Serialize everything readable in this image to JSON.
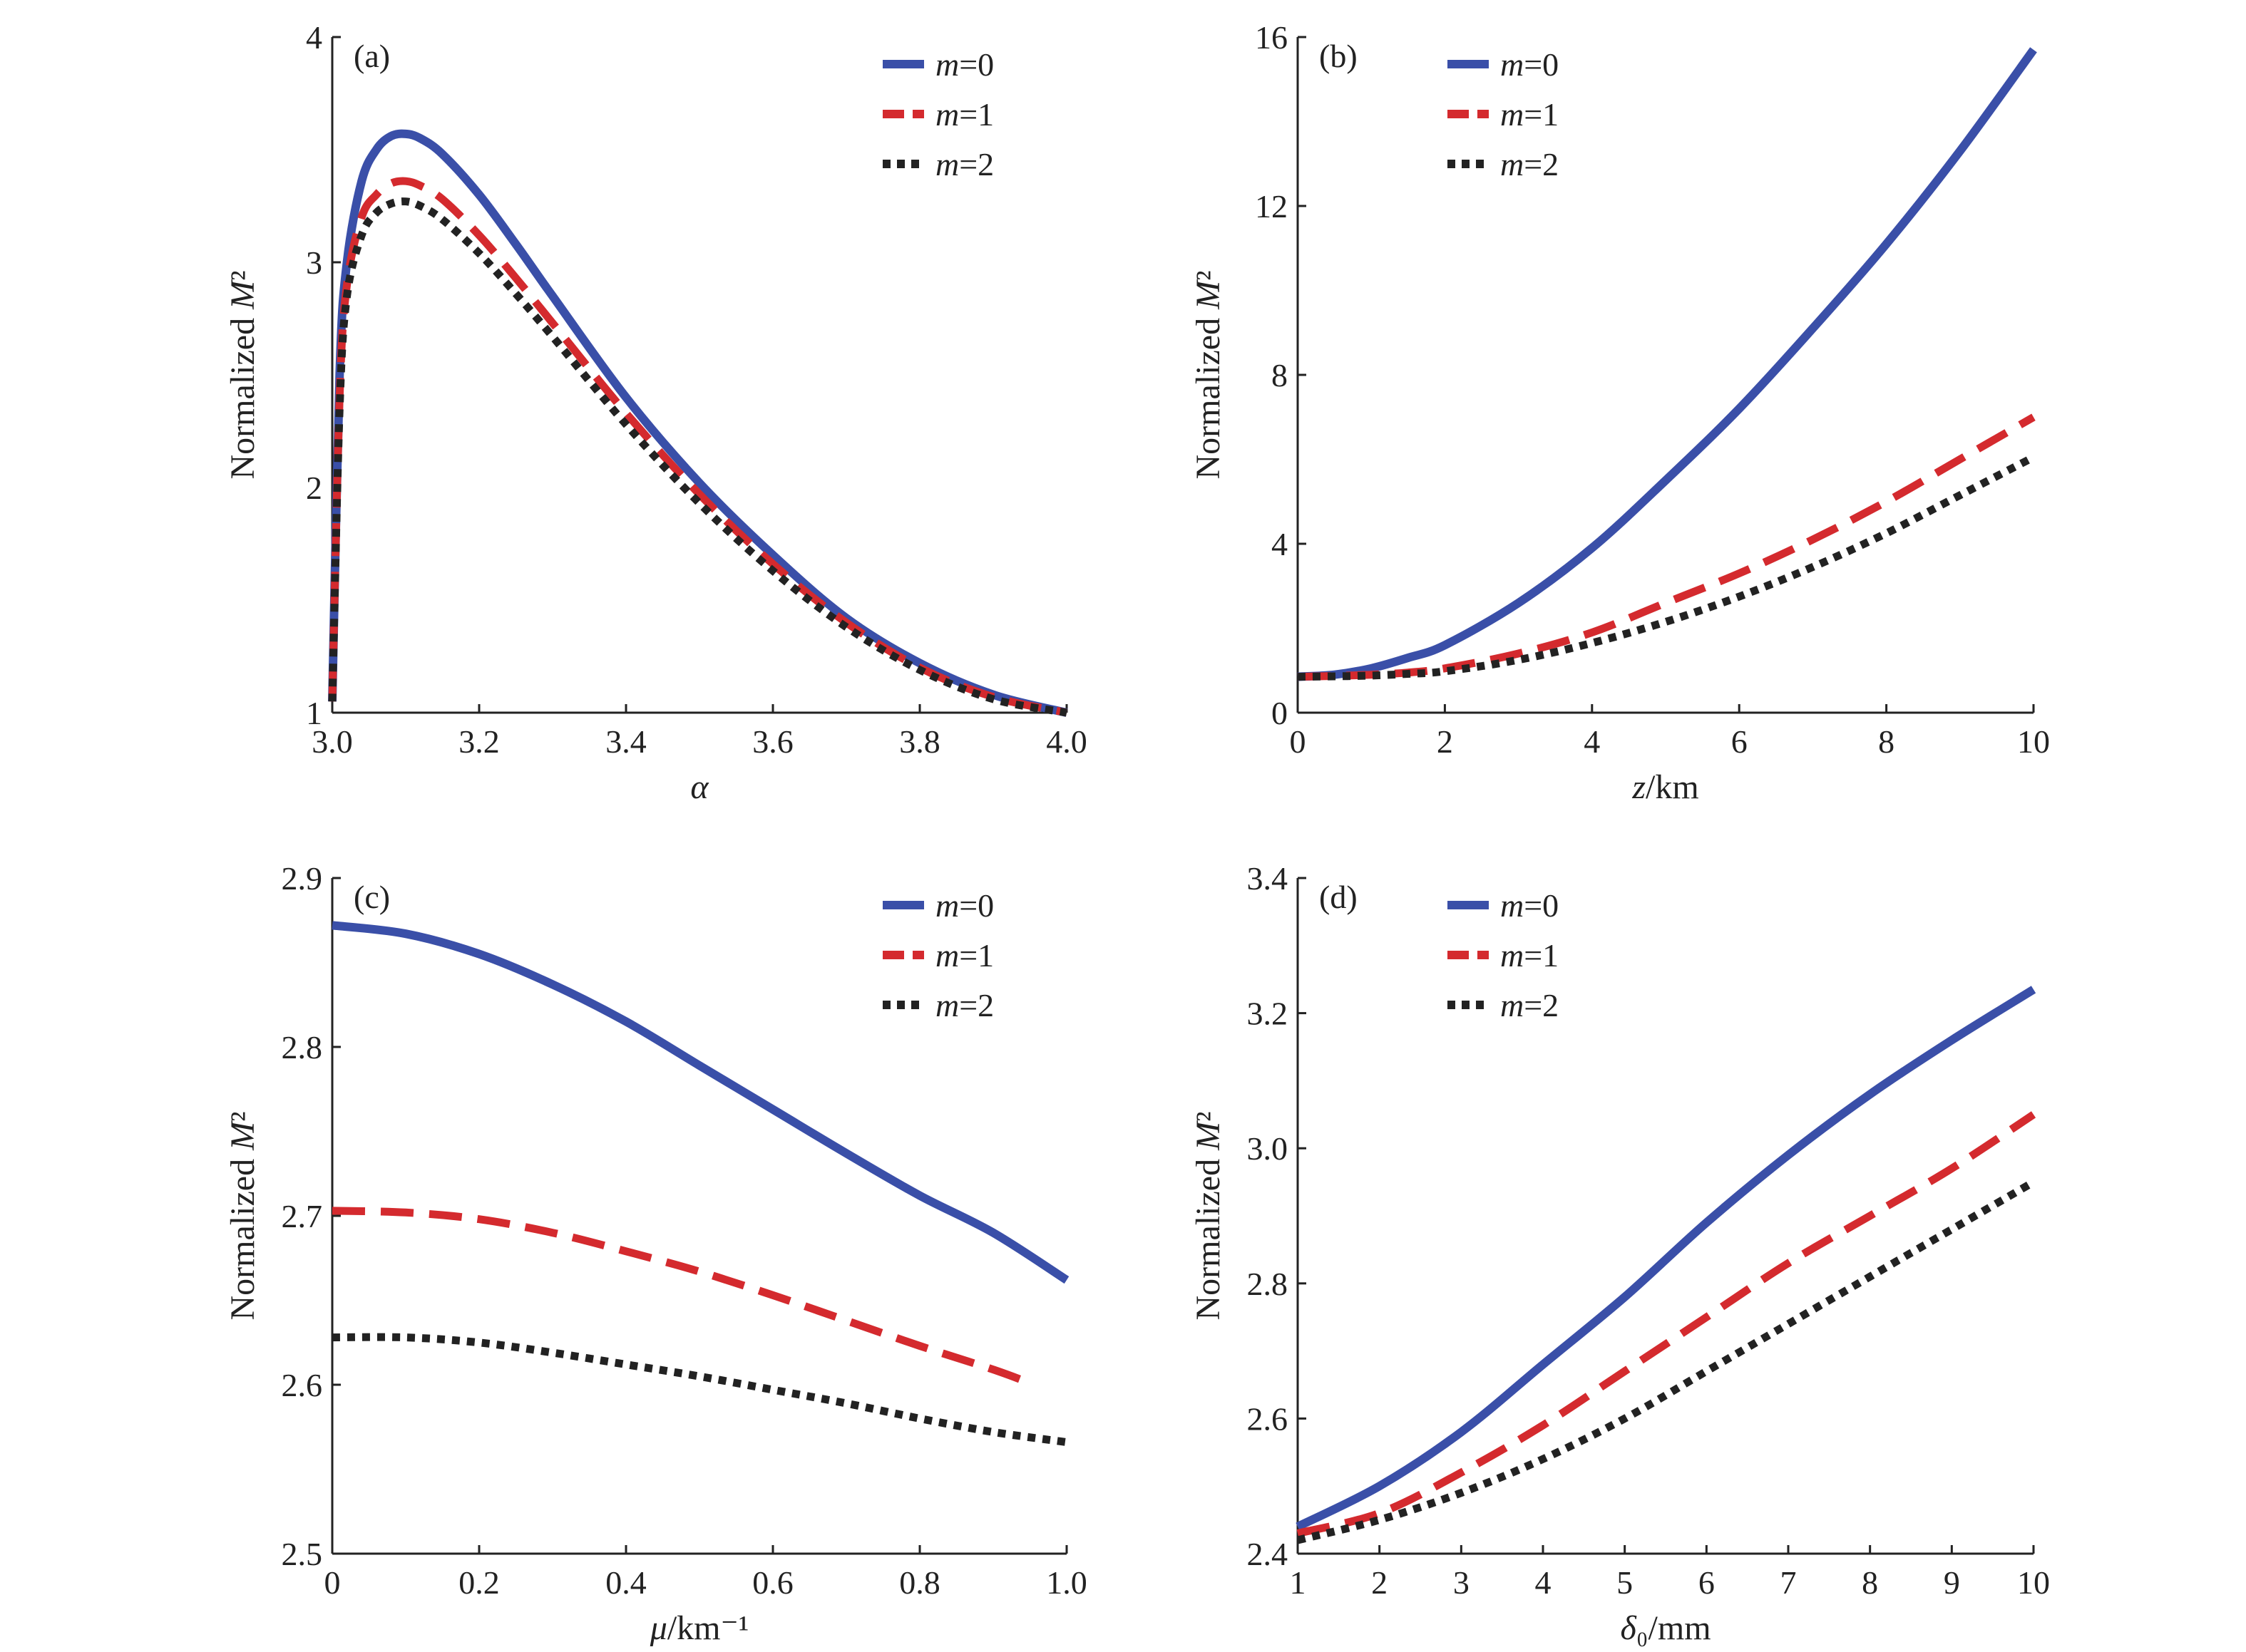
{
  "chart_data": [
    {
      "panel": "(a)",
      "type": "line",
      "xlabel": "α",
      "ylabel": "Normalized M²",
      "xlim": [
        3.0,
        4.0
      ],
      "ylim": [
        1,
        4
      ],
      "xticks": [
        "3.0",
        "3.2",
        "3.4",
        "3.6",
        "3.8",
        "4.0"
      ],
      "yticks": [
        "1",
        "2",
        "3",
        "4"
      ],
      "legend_position": "top-right",
      "grid": false,
      "x": [
        3.0,
        3.01,
        3.02,
        3.04,
        3.06,
        3.08,
        3.1,
        3.12,
        3.15,
        3.2,
        3.25,
        3.3,
        3.4,
        3.5,
        3.6,
        3.7,
        3.8,
        3.9,
        4.0
      ],
      "series": [
        {
          "name": "m=0",
          "style": "solid",
          "color": "#3a4fa8",
          "values": [
            1.05,
            2.5,
            3.0,
            3.36,
            3.5,
            3.56,
            3.57,
            3.55,
            3.48,
            3.3,
            3.08,
            2.85,
            2.4,
            2.02,
            1.7,
            1.42,
            1.22,
            1.08,
            1.0
          ]
        },
        {
          "name": "m=1",
          "style": "dashed",
          "color": "#d42a2e",
          "values": [
            1.05,
            2.4,
            2.9,
            3.2,
            3.3,
            3.35,
            3.36,
            3.34,
            3.28,
            3.12,
            2.93,
            2.73,
            2.33,
            1.97,
            1.66,
            1.4,
            1.2,
            1.07,
            1.0
          ]
        },
        {
          "name": "m=2",
          "style": "dotted",
          "color": "#222222",
          "values": [
            1.05,
            2.35,
            2.85,
            3.12,
            3.22,
            3.26,
            3.27,
            3.25,
            3.19,
            3.04,
            2.86,
            2.67,
            2.28,
            1.93,
            1.63,
            1.38,
            1.19,
            1.06,
            1.0
          ]
        }
      ]
    },
    {
      "panel": "(b)",
      "type": "line",
      "xlabel": "z/km",
      "ylabel": "Normalized M²",
      "xlim": [
        0,
        10
      ],
      "ylim": [
        0,
        16
      ],
      "xticks": [
        "0",
        "2",
        "4",
        "6",
        "8",
        "10"
      ],
      "yticks": [
        "0",
        "4",
        "8",
        "12",
        "16"
      ],
      "legend_position": "top-left",
      "grid": false,
      "x": [
        0,
        0.5,
        1,
        1.5,
        2,
        3,
        4,
        5,
        6,
        7,
        8,
        9,
        10
      ],
      "series": [
        {
          "name": "m=0",
          "style": "solid",
          "color": "#3a4fa8",
          "values": [
            0.85,
            0.9,
            1.05,
            1.3,
            1.6,
            2.6,
            3.9,
            5.5,
            7.2,
            9.1,
            11.1,
            13.3,
            15.7
          ]
        },
        {
          "name": "m=1",
          "style": "dashed",
          "color": "#d42a2e",
          "values": [
            0.85,
            0.87,
            0.9,
            0.95,
            1.05,
            1.4,
            1.9,
            2.6,
            3.3,
            4.1,
            5.0,
            6.0,
            7.0
          ]
        },
        {
          "name": "m=2",
          "style": "dotted",
          "color": "#222222",
          "values": [
            0.85,
            0.86,
            0.88,
            0.92,
            0.98,
            1.25,
            1.65,
            2.15,
            2.75,
            3.45,
            4.25,
            5.15,
            6.05
          ]
        }
      ]
    },
    {
      "panel": "(c)",
      "type": "line",
      "xlabel": "μ/km⁻¹",
      "ylabel": "Normalized M²",
      "xlim": [
        0,
        1.0
      ],
      "ylim": [
        2.5,
        2.9
      ],
      "xticks": [
        "0",
        "0.2",
        "0.4",
        "0.6",
        "0.8",
        "1.0"
      ],
      "yticks": [
        "2.5",
        "2.6",
        "2.7",
        "2.8",
        "2.9"
      ],
      "legend_position": "top-right",
      "grid": false,
      "series": [
        {
          "name": "m=0",
          "style": "solid",
          "color": "#3a4fa8",
          "x": [
            0,
            0.1,
            0.2,
            0.3,
            0.4,
            0.5,
            0.6,
            0.7,
            0.8,
            0.9,
            1.0
          ],
          "values": [
            2.872,
            2.867,
            2.855,
            2.837,
            2.815,
            2.789,
            2.763,
            2.737,
            2.712,
            2.69,
            2.662
          ]
        },
        {
          "name": "m=1",
          "style": "dashed",
          "color": "#d42a2e",
          "x": [
            0,
            0.1,
            0.2,
            0.3,
            0.4,
            0.5,
            0.6,
            0.7,
            0.8,
            0.9,
            0.95
          ],
          "values": [
            2.703,
            2.702,
            2.698,
            2.69,
            2.679,
            2.667,
            2.653,
            2.638,
            2.623,
            2.609,
            2.601
          ]
        },
        {
          "name": "m=2",
          "style": "dotted",
          "color": "#222222",
          "x": [
            0,
            0.1,
            0.2,
            0.3,
            0.4,
            0.5,
            0.6,
            0.7,
            0.8,
            0.9,
            1.0
          ],
          "values": [
            2.628,
            2.628,
            2.625,
            2.619,
            2.612,
            2.605,
            2.597,
            2.589,
            2.58,
            2.572,
            2.566
          ]
        }
      ]
    },
    {
      "panel": "(d)",
      "type": "line",
      "xlabel": "δ₀/mm",
      "ylabel": "Normalized M²",
      "xlim": [
        1,
        10
      ],
      "ylim": [
        2.4,
        3.4
      ],
      "xticks": [
        "1",
        "2",
        "3",
        "4",
        "5",
        "6",
        "7",
        "8",
        "9",
        "10"
      ],
      "yticks": [
        "2.4",
        "2.6",
        "2.8",
        "3.0",
        "3.2",
        "3.4"
      ],
      "legend_position": "top-left",
      "grid": false,
      "x": [
        1,
        2,
        3,
        4,
        5,
        6,
        7,
        8,
        9,
        10
      ],
      "series": [
        {
          "name": "m=0",
          "style": "solid",
          "color": "#3a4fa8",
          "values": [
            2.44,
            2.5,
            2.58,
            2.68,
            2.78,
            2.89,
            2.99,
            3.08,
            3.16,
            3.235
          ]
        },
        {
          "name": "m=1",
          "style": "dashed",
          "color": "#d42a2e",
          "values": [
            2.43,
            2.46,
            2.52,
            2.59,
            2.67,
            2.75,
            2.83,
            2.9,
            2.97,
            3.05
          ]
        },
        {
          "name": "m=2",
          "style": "dotted",
          "color": "#222222",
          "values": [
            2.42,
            2.45,
            2.49,
            2.54,
            2.6,
            2.67,
            2.74,
            2.81,
            2.88,
            2.95
          ]
        }
      ]
    }
  ]
}
